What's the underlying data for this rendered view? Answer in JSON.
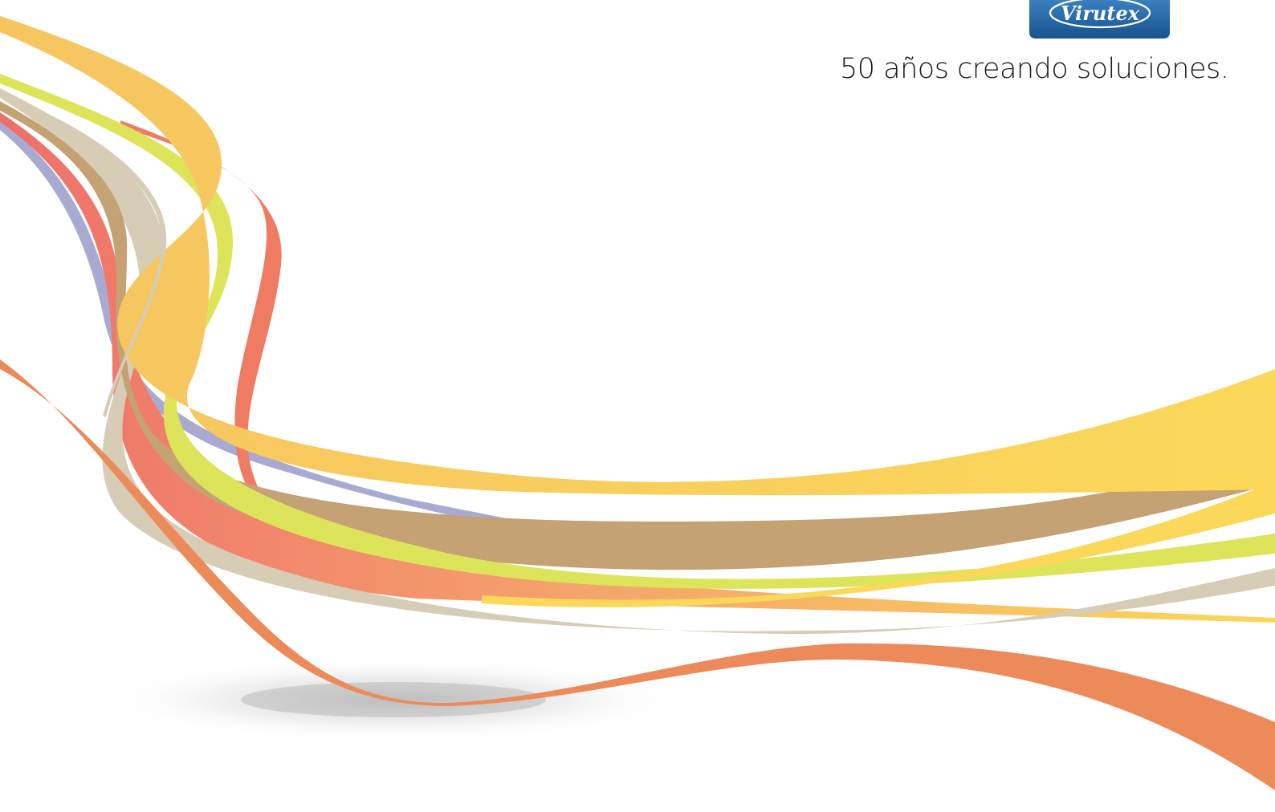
{
  "brand": {
    "name": "Virutex",
    "logo_colors": {
      "fill_top": "#3a7fbf",
      "fill_bottom": "#17538f",
      "text": "#ffffff"
    }
  },
  "tagline": "50 años creando soluciones.",
  "ribbon_colors": {
    "yellow_orange": "#f6c560",
    "lime": "#dde45a",
    "tan": "#c4a274",
    "beige": "#d7ccb5",
    "coral_red": "#ef6f6a",
    "lavender": "#a9aad2",
    "orange": "#ec8a5a",
    "gold": "#fbd85a"
  }
}
